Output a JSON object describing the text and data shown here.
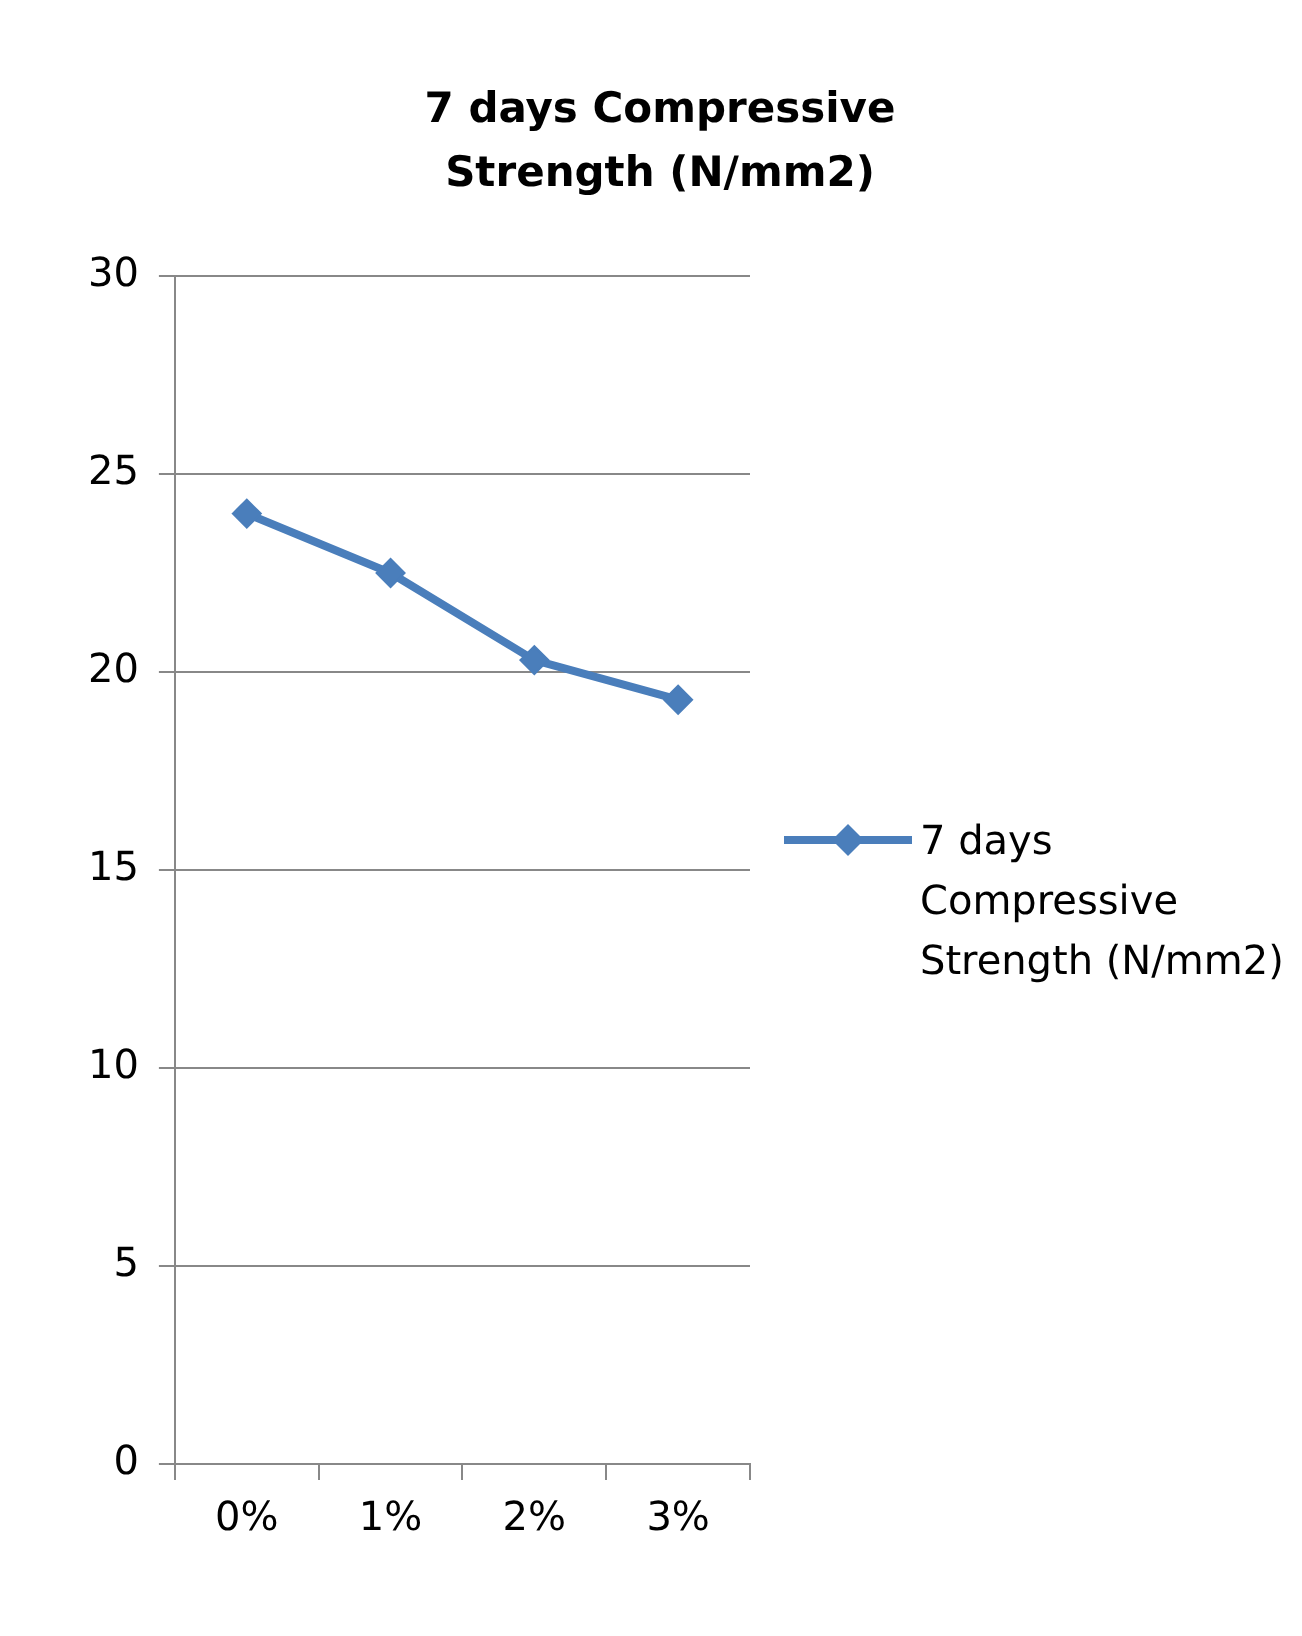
{
  "chart_data": {
    "type": "line",
    "title": "7 days Compressive Strength (N/mm2)",
    "categories": [
      "0%",
      "1%",
      "2%",
      "3%"
    ],
    "series": [
      {
        "name": "7 days Compressive Strength (N/mm2)",
        "color": "#4a7ebb",
        "values": [
          24,
          22.5,
          20.3,
          19.3
        ]
      }
    ],
    "ylim": [
      0,
      30
    ],
    "yticks": [
      0,
      5,
      10,
      15,
      20,
      25,
      30
    ],
    "grid": "y",
    "legend": "right",
    "marker": "diamond",
    "line_style": "solid"
  }
}
